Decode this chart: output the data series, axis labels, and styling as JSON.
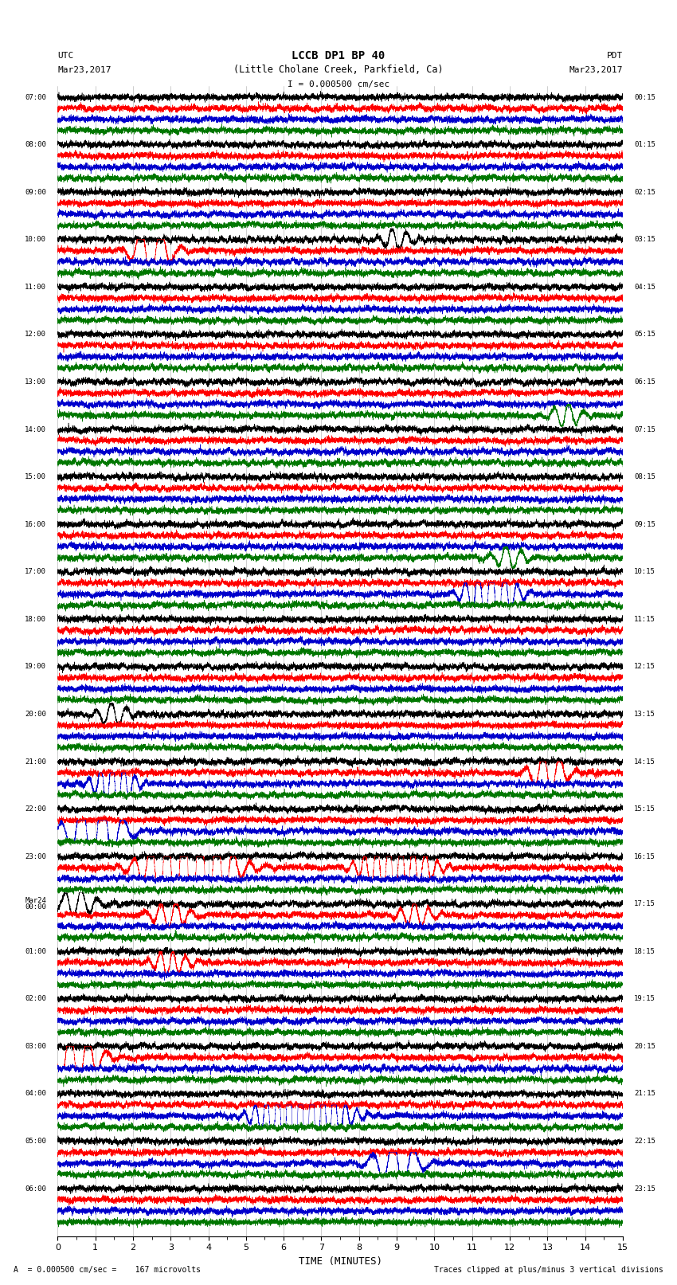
{
  "title_line1": "LCCB DP1 BP 40",
  "title_line2": "(Little Cholane Creek, Parkfield, Ca)",
  "scale_label": "I = 0.000500 cm/sec",
  "utc_label": "UTC",
  "pdt_label": "PDT",
  "date_left": "Mar23,2017",
  "date_right": "Mar23,2017",
  "footer_left": "A  = 0.000500 cm/sec =    167 microvolts",
  "footer_right": "Traces clipped at plus/minus 3 vertical divisions",
  "xlabel": "TIME (MINUTES)",
  "time_min": 0,
  "time_max": 15,
  "background_color": "#ffffff",
  "trace_colors": [
    "#000000",
    "#ff0000",
    "#0000cc",
    "#007700"
  ],
  "n_rows": 24,
  "left_labels": [
    "07:00",
    "08:00",
    "09:00",
    "10:00",
    "11:00",
    "12:00",
    "13:00",
    "14:00",
    "15:00",
    "16:00",
    "17:00",
    "18:00",
    "19:00",
    "20:00",
    "21:00",
    "22:00",
    "23:00",
    "Mar24\n00:00",
    "01:00",
    "02:00",
    "03:00",
    "04:00",
    "05:00",
    "06:00"
  ],
  "right_labels": [
    "00:15",
    "01:15",
    "02:15",
    "03:15",
    "04:15",
    "05:15",
    "06:15",
    "07:15",
    "08:15",
    "09:15",
    "10:15",
    "11:15",
    "12:15",
    "13:15",
    "14:15",
    "15:15",
    "16:15",
    "17:15",
    "18:15",
    "19:15",
    "20:15",
    "21:15",
    "22:15",
    "23:15"
  ],
  "vline_color": "#aaaaaa",
  "vline_lw": 0.4
}
